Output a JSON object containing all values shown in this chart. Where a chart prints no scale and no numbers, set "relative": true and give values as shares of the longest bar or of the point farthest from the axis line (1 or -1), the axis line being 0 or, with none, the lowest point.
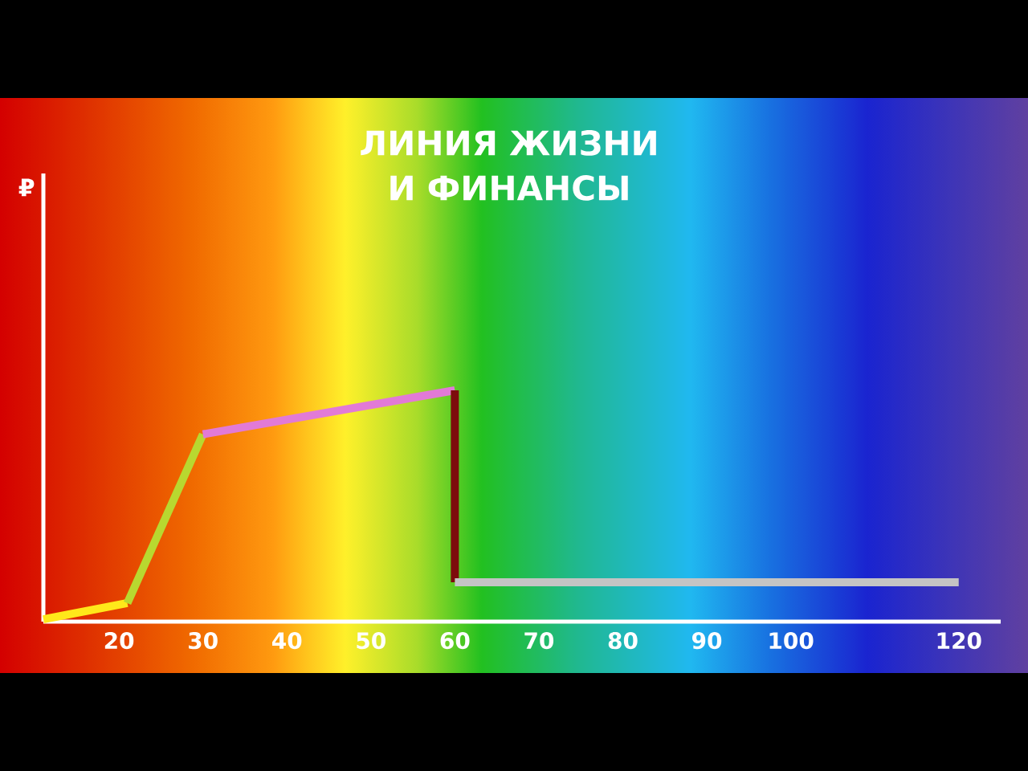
{
  "chart_data": {
    "type": "line",
    "title": "ЛИНИЯ ЖИЗНИ И ФИНАНСЫ",
    "annotations": [
      "₽"
    ],
    "relative": true,
    "xlim": [
      11,
      125
    ],
    "xticks": [
      20,
      30,
      40,
      50,
      60,
      70,
      80,
      90,
      100,
      120
    ],
    "marker": "none",
    "line_style": "solid",
    "series": [
      {
        "color": "#ffe81a",
        "x": [
          11,
          21
        ],
        "values": [
          0.01,
          0.08
        ]
      },
      {
        "color": "#b8d830",
        "x": [
          21,
          30
        ],
        "values": [
          0.08,
          0.81
        ]
      },
      {
        "color": "#e27ad6",
        "x": [
          30,
          60
        ],
        "values": [
          0.81,
          1
        ]
      },
      {
        "color": "#7d0c0c",
        "x": [
          60,
          60
        ],
        "values": [
          1,
          0.17
        ]
      },
      {
        "color": "#c4c4c4",
        "x": [
          60,
          120
        ],
        "values": [
          0.17,
          0.17
        ]
      }
    ]
  }
}
